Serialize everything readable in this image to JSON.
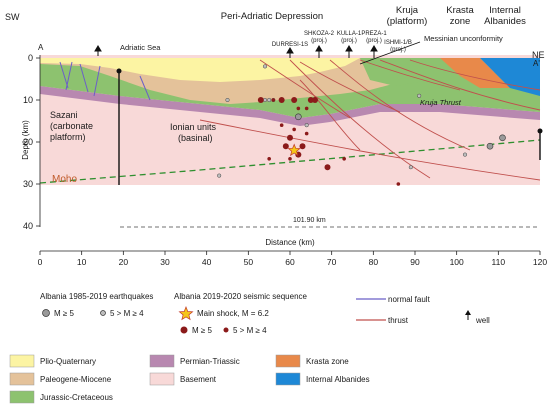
{
  "header": {
    "region_title": "Peri-Adriatic Depression",
    "sw": "SW",
    "ne": "NE",
    "start_point": "A",
    "end_point": "A'",
    "kruja_l1": "Kruja",
    "kruja_l2": "(platform)",
    "krasta_l1": "Krasta",
    "krasta_l2": "zone",
    "internal_l1": "Internal",
    "internal_l2": "Albanides"
  },
  "section": {
    "adriatic_sea": "Adriatic Sea",
    "messinian": "Messinian unconformity",
    "sazani_l1": "Sazani",
    "sazani_l2": "(carbonate",
    "sazani_l3": "platform)",
    "ionian_l1": "Ionian units",
    "ionian_l2": "(basinal)",
    "kruja_thrust": "Kruja Thrust",
    "moho": "Moho",
    "distance_note": "101.90 km"
  },
  "wells": [
    {
      "l1": "DURRESI-1S",
      "l2": ""
    },
    {
      "l1": "SHKOZA-2",
      "l2": "(proj.)"
    },
    {
      "l1": "KULLA-1",
      "l2": "(proj.)"
    },
    {
      "l1": "PREZA-1",
      "l2": "(proj.)"
    },
    {
      "l1": "ISHMI-1/B",
      "l2": "(proj.)"
    }
  ],
  "axes": {
    "y_label": "Depth (km)",
    "x_label": "Distance (km)",
    "y_ticks": [
      "0",
      "10",
      "20",
      "30",
      "40"
    ],
    "x_ticks": [
      "0",
      "10",
      "20",
      "30",
      "40",
      "50",
      "60",
      "70",
      "80",
      "90",
      "100",
      "110",
      "120"
    ]
  },
  "legend": {
    "eq_title": "Albania 1985-2019 earthquakes",
    "eq_m5": "M ≥ 5",
    "eq_m4": "5 > M ≥ 4",
    "seq_title": "Albania 2019-2020 seismic sequence",
    "main_shock": "Main shock, M = 6.2",
    "seq_m5": "M ≥ 5",
    "seq_m4": "5 > M ≥ 4",
    "normal_fault": "normal fault",
    "thrust": "thrust",
    "well": "well",
    "units": [
      {
        "label": "Plio-Quaternary",
        "color": "#fcf4a3"
      },
      {
        "label": "Paleogene-Miocene",
        "color": "#e4c29a"
      },
      {
        "label": "Jurassic-Cretaceous",
        "color": "#8dc26f"
      },
      {
        "label": "Permian-Triassic",
        "color": "#b888b0"
      },
      {
        "label": "Basement",
        "color": "#f8d9d8"
      },
      {
        "label": "Krasta zone",
        "color": "#e8894a"
      },
      {
        "label": "Internal Albanides",
        "color": "#1e88d6"
      }
    ]
  },
  "colors": {
    "normal_fault": "#6b5fc8",
    "thrust": "#c0504d",
    "moho_line": "#2f8f2f",
    "seq_quake": "#8b1a1a",
    "main_shock_fill": "#f5c518"
  },
  "earthquakes": {
    "main_shock": {
      "distance_km": 61,
      "depth_km": 22
    },
    "seq_m5": [
      {
        "distance_km": 53,
        "depth_km": 10
      },
      {
        "distance_km": 58,
        "depth_km": 10
      },
      {
        "distance_km": 61,
        "depth_km": 10
      },
      {
        "distance_km": 65,
        "depth_km": 10
      },
      {
        "distance_km": 66,
        "depth_km": 10
      },
      {
        "distance_km": 60,
        "depth_km": 19
      },
      {
        "distance_km": 59,
        "depth_km": 21
      },
      {
        "distance_km": 63,
        "depth_km": 21
      },
      {
        "distance_km": 62,
        "depth_km": 23
      },
      {
        "distance_km": 69,
        "depth_km": 26
      }
    ],
    "seq_m4": [
      {
        "distance_km": 56,
        "depth_km": 10
      },
      {
        "distance_km": 62,
        "depth_km": 12
      },
      {
        "distance_km": 64,
        "depth_km": 12
      },
      {
        "distance_km": 58,
        "depth_km": 16
      },
      {
        "distance_km": 61,
        "depth_km": 17
      },
      {
        "distance_km": 64,
        "depth_km": 18
      },
      {
        "distance_km": 55,
        "depth_km": 24
      },
      {
        "distance_km": 60,
        "depth_km": 24
      },
      {
        "distance_km": 73,
        "depth_km": 24
      },
      {
        "distance_km": 86,
        "depth_km": 30
      }
    ],
    "hist_m5": [
      {
        "distance_km": 62,
        "depth_km": 14
      },
      {
        "distance_km": 108,
        "depth_km": 21
      },
      {
        "distance_km": 111,
        "depth_km": 19
      }
    ],
    "hist_m4": [
      {
        "distance_km": 54,
        "depth_km": 2
      },
      {
        "distance_km": 45,
        "depth_km": 10
      },
      {
        "distance_km": 54,
        "depth_km": 10
      },
      {
        "distance_km": 56,
        "depth_km": 10
      },
      {
        "distance_km": 55,
        "depth_km": 10
      },
      {
        "distance_km": 64,
        "depth_km": 16
      },
      {
        "distance_km": 89,
        "depth_km": 26
      },
      {
        "distance_km": 102,
        "depth_km": 23
      },
      {
        "distance_km": 91,
        "depth_km": 9
      },
      {
        "distance_km": 43,
        "depth_km": 28
      }
    ]
  }
}
